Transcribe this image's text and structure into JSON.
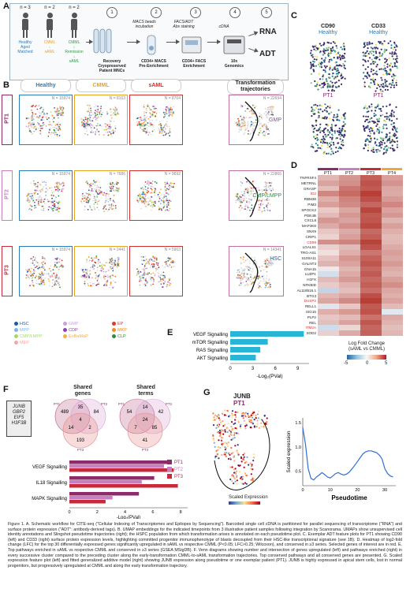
{
  "panel_letters": {
    "a": "A",
    "b": "B",
    "c": "C",
    "d": "D",
    "e": "E",
    "f": "F",
    "g": "G"
  },
  "panelA": {
    "cohorts": [
      {
        "n": "n = 3",
        "label": "Healthy\nAged\nMatched",
        "color": "#2b7bba"
      },
      {
        "n": "n = 2",
        "label": "CMML\n↓\nsAML",
        "color": "#e9a229"
      },
      {
        "n": "n = 2",
        "label": "CMML\n↓\nRemission\n↓\nsAML",
        "color": "#2f9e44"
      }
    ],
    "steps": [
      {
        "num": "1",
        "label": "Recovery\nCryopreserved\nPatient MNCs"
      },
      {
        "num": "2",
        "label": "CD34+ MACS\nPre-Enrichment",
        "top": "MACS beads\nincubation"
      },
      {
        "num": "3",
        "label": "CD34+ FACS\nEnrichment",
        "top": "FACS/ADT\nAbs staining"
      },
      {
        "num": "4",
        "label": "10x\nGenomics",
        "top": "cDNA"
      },
      {
        "num": "5",
        "label": ""
      }
    ],
    "outputs": [
      "RNA",
      "ADT"
    ]
  },
  "panelB": {
    "col_headers": [
      "Healthy",
      "CMML",
      "sAML",
      "Transformation\ntrajectories"
    ],
    "col_colors": [
      "#2b7bba",
      "#e9a229",
      "#d32f2f",
      "#222222"
    ],
    "rows": [
      {
        "label": "PT1",
        "color": "#8e2a6a",
        "counts": [
          "N = 15974",
          "N = 8163",
          "N = 8704",
          "N = 22694"
        ],
        "traj": "GMP"
      },
      {
        "label": "PT2",
        "color": "#c77fc0",
        "counts": [
          "N = 15974",
          "N = 7686",
          "N = 9692",
          "N = 22866"
        ],
        "traj": "CMP/LMPP"
      },
      {
        "label": "PT3",
        "color": "#c62a3b",
        "counts": [
          "N = 15974",
          "N = 2441",
          "N = 5903",
          "N = 14341"
        ],
        "traj": "HSC"
      }
    ],
    "umap_axis": [
      "UMAP 1",
      "UMAP 2"
    ],
    "legend": [
      {
        "label": "HSC",
        "color": "#1f5aa6"
      },
      {
        "label": "GMP",
        "color": "#c9a0dc"
      },
      {
        "label": "EP",
        "color": "#d93a2b"
      },
      {
        "label": "MPP",
        "color": "#7fb4e0"
      },
      {
        "label": "CDP",
        "color": "#8e44ad"
      },
      {
        "label": "MKP",
        "color": "#f08a24"
      },
      {
        "label": "CMP/LMPP",
        "color": "#a6d96a"
      },
      {
        "label": "EoBaMaP",
        "color": "#f5b041"
      },
      {
        "label": "CLP",
        "color": "#2e8b3d"
      },
      {
        "label": "MEP",
        "color": "#f5a6a6"
      }
    ]
  },
  "panelC": {
    "titles": [
      "CD90",
      "CD33"
    ],
    "subtitles": [
      "Healthy",
      "Healthy"
    ],
    "row2": "PT1"
  },
  "panelD": {
    "patients": [
      {
        "label": "PT1",
        "color": "#8e2a6a"
      },
      {
        "label": "PT2",
        "color": "#c77fc0"
      },
      {
        "label": "PT3",
        "color": "#c62a3b"
      },
      {
        "label": "PT4",
        "color": "#f0a830"
      }
    ],
    "genes": [
      "TNFRSF4",
      "METRNL",
      "GRASP",
      "ID2",
      "RBM38",
      "PIM3",
      "SPOCK2",
      "PDE4B",
      "CXCL8",
      "MAP3K8",
      "SNX9",
      "CRIP1",
      "CD99",
      "LGALS1",
      "TRG-AS1",
      "S100A11",
      "GALNT3",
      "GNA15",
      "LUZP1",
      "H1FX",
      "NFKBID",
      "AL118516.1",
      "BTG3",
      "DUSP2",
      "RELL1",
      "ISG15",
      "PLP2",
      "REL",
      "ITM2A",
      "SOD2"
    ],
    "red_genes": [
      "ID2",
      "CD99",
      "DUSP2",
      "ITM2A"
    ],
    "values": [
      [
        1.6,
        2.4,
        3.8,
        2.2
      ],
      [
        2.1,
        2.6,
        4.1,
        2.5
      ],
      [
        1.4,
        3.2,
        3.9,
        2.0
      ],
      [
        2.8,
        3.5,
        4.6,
        1.9
      ],
      [
        1.8,
        2.9,
        4.2,
        2.3
      ],
      [
        2.2,
        2.7,
        3.6,
        2.8
      ],
      [
        1.1,
        2.0,
        4.4,
        2.1
      ],
      [
        1.5,
        2.4,
        3.9,
        2.4
      ],
      [
        2.4,
        2.1,
        4.0,
        1.7
      ],
      [
        1.9,
        2.6,
        4.3,
        2.2
      ],
      [
        1.2,
        1.9,
        3.5,
        1.8
      ],
      [
        0.9,
        2.2,
        3.8,
        1.5
      ],
      [
        2.6,
        2.9,
        4.5,
        1.6
      ],
      [
        1.0,
        1.5,
        4.1,
        1.9
      ],
      [
        0.6,
        1.8,
        3.2,
        2.2
      ],
      [
        1.3,
        2.4,
        3.7,
        2.0
      ],
      [
        1.7,
        2.1,
        4.0,
        2.3
      ],
      [
        0.4,
        1.6,
        3.6,
        1.9
      ],
      [
        -0.8,
        1.9,
        3.9,
        1.7
      ],
      [
        1.5,
        2.3,
        3.5,
        2.2
      ],
      [
        1.1,
        1.7,
        3.8,
        2.6
      ],
      [
        -1.2,
        1.4,
        3.4,
        2.0
      ],
      [
        1.6,
        2.0,
        4.2,
        1.8
      ],
      [
        2.0,
        2.7,
        4.6,
        2.1
      ],
      [
        -0.6,
        1.2,
        3.9,
        1.5
      ],
      [
        1.8,
        2.3,
        4.1,
        -0.5
      ],
      [
        1.2,
        1.5,
        3.3,
        1.9
      ],
      [
        1.4,
        2.1,
        4.0,
        1.7
      ],
      [
        -0.9,
        0.8,
        3.6,
        1.4
      ],
      [
        1.0,
        1.9,
        3.7,
        1.6
      ]
    ],
    "legend_title": "Log Fold Change\n(sAML vs CMML)",
    "legend_ticks": [
      "-5",
      "0",
      "5"
    ]
  },
  "chart_data": [
    {
      "type": "bar",
      "panel": "E",
      "categories": [
        "VEGF Signalling",
        "mTOR Signalling",
        "RAS Signalling",
        "AKT Signalling"
      ],
      "values": [
        9.8,
        5.0,
        4.0,
        3.4
      ],
      "xlabel": "-Log₂(PVal)",
      "xticks": [
        "0",
        "3",
        "6",
        "9"
      ],
      "xlim": [
        0,
        10.5
      ],
      "color": "#29b5d6"
    },
    {
      "type": "bar",
      "panel": "F",
      "categories": [
        "VEGF Signalling",
        "IL18 Signalling",
        "MAPK Signalling"
      ],
      "series": [
        {
          "name": "PT1",
          "values": [
            7.2,
            6.1,
            5.0
          ]
        },
        {
          "name": "PT2",
          "values": [
            6.8,
            5.2,
            3.1
          ]
        },
        {
          "name": "PT3",
          "values": [
            7.5,
            7.8,
            2.6
          ]
        }
      ],
      "series_colors": [
        "#8e2a6a",
        "#c77fc0",
        "#c62a3b"
      ],
      "xlabel": "-Log₂(PVal)",
      "xticks": [
        "0",
        "2",
        "4",
        "6",
        "8"
      ],
      "xlim": [
        0,
        8.5
      ]
    },
    {
      "type": "line",
      "panel": "G",
      "x": [
        0,
        1,
        2,
        3,
        4,
        5,
        6,
        7,
        8,
        9,
        10,
        11,
        12,
        13,
        14,
        15,
        16,
        17,
        18,
        19,
        20,
        21,
        22,
        23,
        24,
        25,
        26,
        27,
        28,
        29,
        30,
        31,
        32,
        33
      ],
      "y": [
        1.4,
        1.05,
        0.55,
        0.35,
        0.32,
        0.38,
        0.42,
        0.47,
        0.43,
        0.38,
        0.36,
        0.4,
        0.45,
        0.47,
        0.44,
        0.42,
        0.44,
        0.48,
        0.55,
        0.62,
        0.7,
        0.78,
        0.86,
        0.9,
        0.92,
        0.92,
        0.9,
        0.88,
        0.83,
        0.75,
        0.55,
        0.45,
        0.4,
        0.38
      ],
      "xlabel": "Pseudotime",
      "ylabel": "Scaled expression",
      "xticks": [
        "0",
        "10",
        "20",
        "30"
      ],
      "yticks": [
        "0.5",
        "1.0",
        "1.5"
      ],
      "xlim": [
        0,
        34
      ],
      "ylim": [
        0.2,
        1.6
      ]
    }
  ],
  "panelF": {
    "venn1_title": "Shared\ngenes",
    "venn2_title": "Shared\nterms",
    "venn1": {
      "pt1": "489",
      "pt2": "84",
      "pt3": "193",
      "pt12": "35",
      "pt13": "14",
      "pt23": "2",
      "all": "4"
    },
    "venn2": {
      "pt1": "54",
      "pt2": "42",
      "pt3": "41",
      "pt12": "14",
      "pt13": "7",
      "pt23": "85",
      "all": "24"
    },
    "labels": [
      "PT1",
      "PT2",
      "PT3"
    ],
    "gene_box": [
      "JUNB",
      "GBP2",
      "EIF5",
      "H3F3B"
    ]
  },
  "panelG": {
    "gene": "JUNB",
    "patient": "PT1",
    "scale_label": "Scaled Expression",
    "scale_ticks": [
      "-2",
      "-1",
      "0",
      "1",
      "2"
    ]
  },
  "caption": "Figure 1. A. Schematic workflow for CITE-seq (\"Cellular Indexing of Transcriptomes and Epitopes by Sequencing\"). Barcoded single cell cDNA is partitioned for parallel sequencing of transcriptome (\"RNA\") and surface protein expression (\"ADT\": antibody-derived tags). B. UMAP embeddings for the indicated timepoints from 3 illustrative patient samples following integration by Scanorama. UMAPs show unsupervised cell identity annotations and Slingshot pseudotime trajectories (right); the HSPC population from which transformation arises is annotated on each pseudotime plot. C. Exemplar ADT feature plots for PT1 showing CD90 (left) and CD33 (right) surface protein expression levels, highlighting committed progenitor immunophenotype of blasts decoupled from their HSC-like transcriptional signature (see 1B). D. Heatmap of log2-fold change (LFC) for the top 30 differentially expressed genes significantly upregulated in sAML vs respective CMML (P<0.05; LFC>0.25; Wilcoxon), and conserved in ≥3 series. Selected genes of interest are in red. E. Top pathways enriched in sAML vs respective CMML and conserved in ≥3 series (GSEA MSigDB). F. Venn diagrams showing number and intersection of genes upregulated (left) and pathways enriched (right) in every successive cluster compared to the preceding cluster along the early-transformation CMML-to-sAML transformation trajectories. Top conserved pathways and all conserved genes are presented. G. Scaled expression feature plot (left) and fitted generalized additive model (right) showing JUNB expression along pseudotime or one exemplar patient (PT1). JUNB is highly expressed in apical stem cells, lost in normal progenitors, but progressively upregulated at CMML and along the early transformation trajectory."
}
